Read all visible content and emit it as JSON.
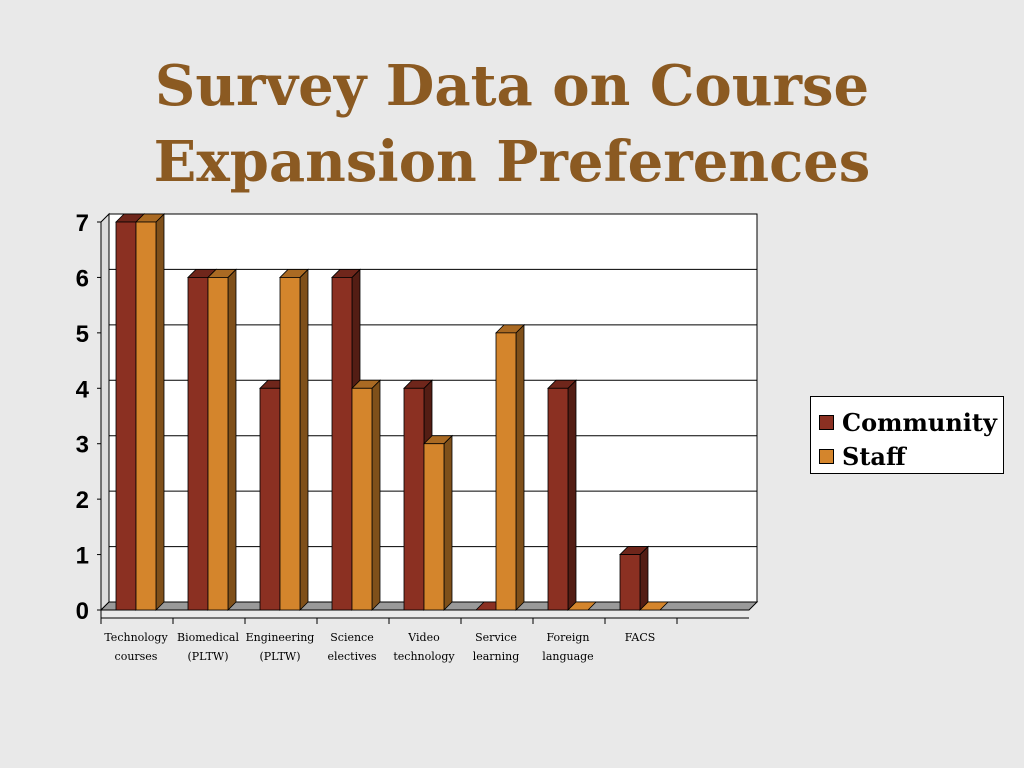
{
  "title_lines": [
    "Survey Data on Course",
    "Expansion Preferences"
  ],
  "colors": {
    "title": "#8b5a22",
    "community": "#8b3022",
    "staff": "#d4852c",
    "floor": "#9a9a9a"
  },
  "chart_data": {
    "type": "bar",
    "title": "",
    "xlabel": "",
    "ylabel": "",
    "ylim": [
      0,
      7
    ],
    "yticks": [
      0,
      1,
      2,
      3,
      4,
      5,
      6,
      7
    ],
    "grid": true,
    "legend_position": "right",
    "categories": [
      [
        "Technology",
        "courses"
      ],
      [
        "Biomedical",
        "(PLTW)"
      ],
      [
        "Engineering",
        "(PLTW)"
      ],
      [
        "Science",
        "electives"
      ],
      [
        "Video",
        "technology"
      ],
      [
        "Service",
        "learning"
      ],
      [
        "Foreign",
        "language"
      ],
      [
        "FACS",
        ""
      ]
    ],
    "series": [
      {
        "name": "Community",
        "values": [
          7,
          6,
          4,
          6,
          4,
          0,
          4,
          1
        ]
      },
      {
        "name": "Staff",
        "values": [
          7,
          6,
          6,
          4,
          3,
          5,
          0,
          0
        ]
      }
    ]
  }
}
